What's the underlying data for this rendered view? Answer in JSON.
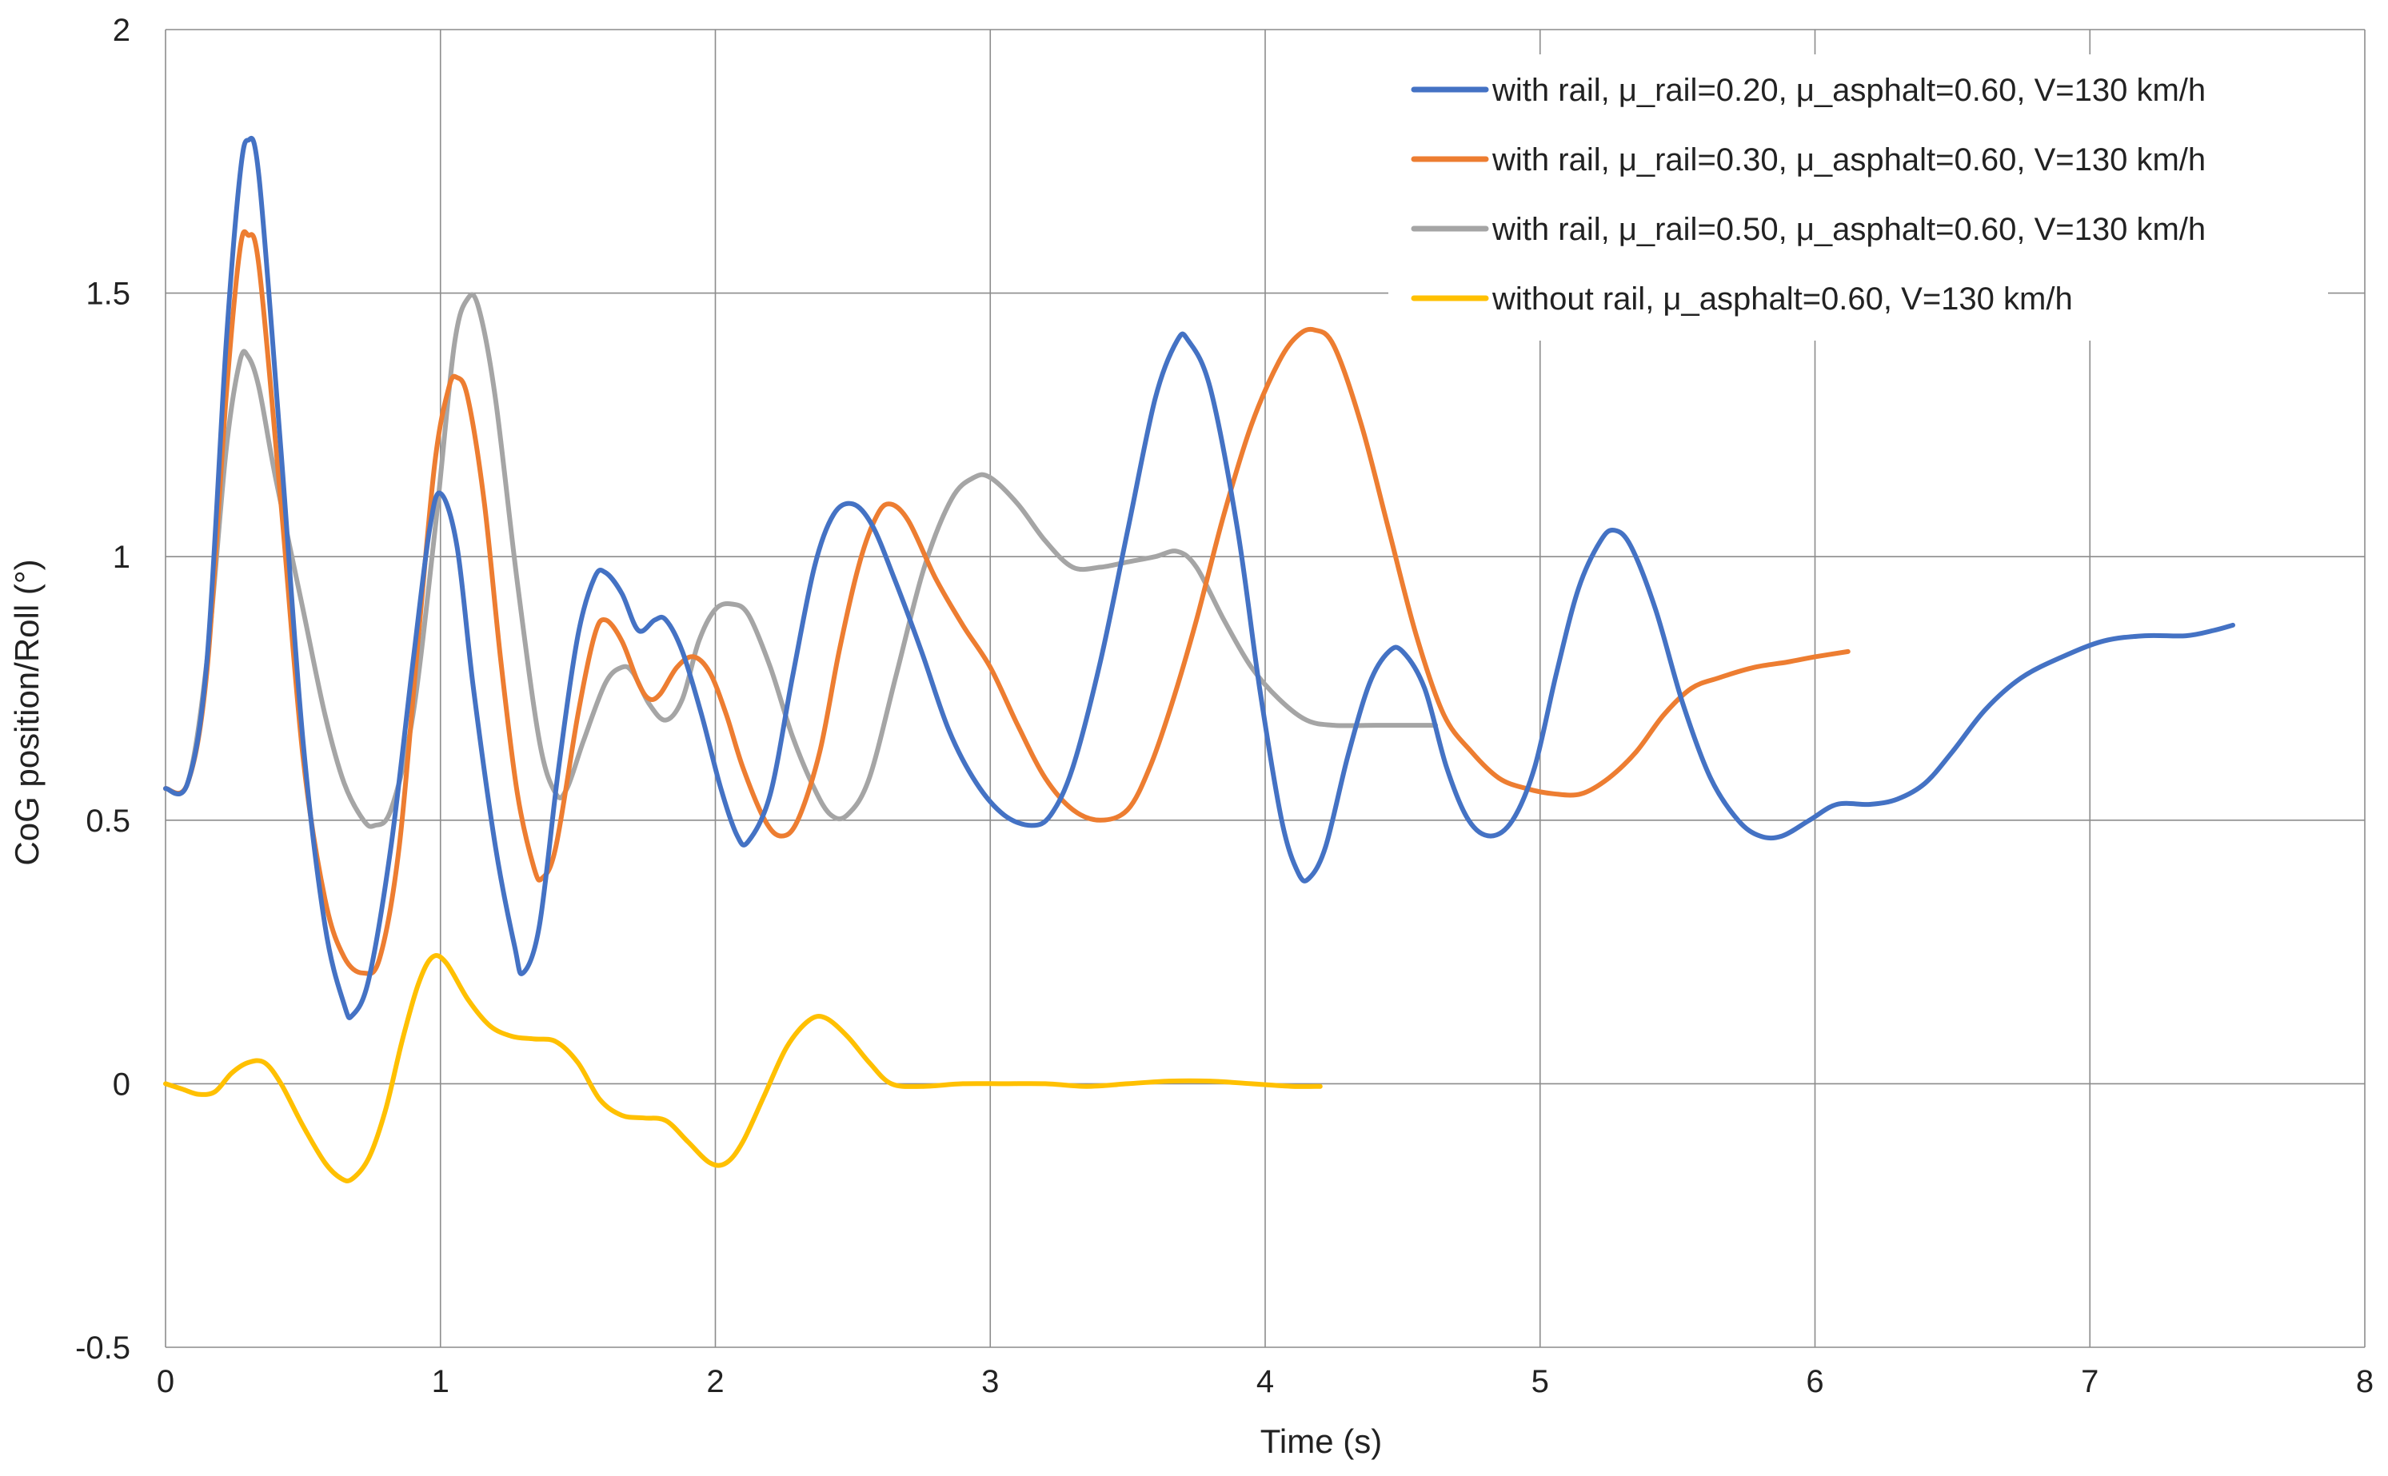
{
  "chart_data": {
    "type": "line",
    "title": "",
    "xlabel": "Time  (s)",
    "ylabel": "CoG position/Roll (°)",
    "xlim": [
      0,
      8
    ],
    "ylim": [
      -0.5,
      2
    ],
    "xticks": [
      0,
      1,
      2,
      3,
      4,
      5,
      6,
      7,
      8
    ],
    "yticks": [
      -0.5,
      0,
      0.5,
      1,
      1.5,
      2
    ],
    "xtick_labels": [
      "0",
      "1",
      "2",
      "3",
      "4",
      "5",
      "6",
      "7",
      "8"
    ],
    "ytick_labels": [
      "-0.5",
      "0",
      "0.5",
      "1",
      "1.5",
      "2"
    ],
    "grid": true,
    "legend_position": "top-right",
    "series": [
      {
        "name": "with rail, μ_rail=0.20, μ_asphalt=0.60, V=130 km/h",
        "color": "#4472C4",
        "points": [
          [
            0,
            0.56
          ],
          [
            0.08,
            0.57
          ],
          [
            0.15,
            0.8
          ],
          [
            0.22,
            1.4
          ],
          [
            0.27,
            1.72
          ],
          [
            0.3,
            1.79
          ],
          [
            0.34,
            1.72
          ],
          [
            0.42,
            1.2
          ],
          [
            0.5,
            0.65
          ],
          [
            0.58,
            0.3
          ],
          [
            0.65,
            0.15
          ],
          [
            0.68,
            0.13
          ],
          [
            0.74,
            0.2
          ],
          [
            0.82,
            0.45
          ],
          [
            0.9,
            0.8
          ],
          [
            0.96,
            1.05
          ],
          [
            1.0,
            1.12
          ],
          [
            1.06,
            1.02
          ],
          [
            1.12,
            0.75
          ],
          [
            1.2,
            0.45
          ],
          [
            1.27,
            0.26
          ],
          [
            1.3,
            0.21
          ],
          [
            1.36,
            0.3
          ],
          [
            1.43,
            0.6
          ],
          [
            1.5,
            0.85
          ],
          [
            1.56,
            0.96
          ],
          [
            1.6,
            0.97
          ],
          [
            1.66,
            0.93
          ],
          [
            1.72,
            0.86
          ],
          [
            1.78,
            0.88
          ],
          [
            1.82,
            0.88
          ],
          [
            1.88,
            0.82
          ],
          [
            1.95,
            0.7
          ],
          [
            2.02,
            0.56
          ],
          [
            2.08,
            0.47
          ],
          [
            2.12,
            0.46
          ],
          [
            2.2,
            0.55
          ],
          [
            2.28,
            0.77
          ],
          [
            2.36,
            0.98
          ],
          [
            2.43,
            1.08
          ],
          [
            2.5,
            1.1
          ],
          [
            2.57,
            1.06
          ],
          [
            2.65,
            0.96
          ],
          [
            2.75,
            0.82
          ],
          [
            2.85,
            0.67
          ],
          [
            2.95,
            0.57
          ],
          [
            3.05,
            0.51
          ],
          [
            3.15,
            0.49
          ],
          [
            3.22,
            0.51
          ],
          [
            3.3,
            0.6
          ],
          [
            3.4,
            0.8
          ],
          [
            3.5,
            1.05
          ],
          [
            3.6,
            1.3
          ],
          [
            3.68,
            1.41
          ],
          [
            3.72,
            1.41
          ],
          [
            3.8,
            1.32
          ],
          [
            3.9,
            1.05
          ],
          [
            3.98,
            0.75
          ],
          [
            4.06,
            0.5
          ],
          [
            4.12,
            0.4
          ],
          [
            4.16,
            0.39
          ],
          [
            4.22,
            0.45
          ],
          [
            4.3,
            0.62
          ],
          [
            4.38,
            0.76
          ],
          [
            4.45,
            0.82
          ],
          [
            4.5,
            0.82
          ],
          [
            4.58,
            0.75
          ],
          [
            4.66,
            0.6
          ],
          [
            4.74,
            0.5
          ],
          [
            4.82,
            0.47
          ],
          [
            4.9,
            0.5
          ],
          [
            4.98,
            0.6
          ],
          [
            5.06,
            0.78
          ],
          [
            5.14,
            0.94
          ],
          [
            5.22,
            1.03
          ],
          [
            5.27,
            1.05
          ],
          [
            5.33,
            1.02
          ],
          [
            5.42,
            0.9
          ],
          [
            5.52,
            0.72
          ],
          [
            5.62,
            0.58
          ],
          [
            5.72,
            0.5
          ],
          [
            5.8,
            0.47
          ],
          [
            5.88,
            0.47
          ],
          [
            5.98,
            0.5
          ],
          [
            6.08,
            0.53
          ],
          [
            6.2,
            0.53
          ],
          [
            6.3,
            0.54
          ],
          [
            6.4,
            0.57
          ],
          [
            6.5,
            0.63
          ],
          [
            6.62,
            0.71
          ],
          [
            6.75,
            0.77
          ],
          [
            6.9,
            0.81
          ],
          [
            7.05,
            0.84
          ],
          [
            7.2,
            0.85
          ],
          [
            7.35,
            0.85
          ],
          [
            7.45,
            0.86
          ],
          [
            7.52,
            0.87
          ]
        ]
      },
      {
        "name": "with rail, μ_rail=0.30, μ_asphalt=0.60, V=130 km/h",
        "color": "#ED7D31",
        "points": [
          [
            0,
            0.56
          ],
          [
            0.08,
            0.57
          ],
          [
            0.15,
            0.78
          ],
          [
            0.22,
            1.3
          ],
          [
            0.27,
            1.58
          ],
          [
            0.3,
            1.61
          ],
          [
            0.34,
            1.55
          ],
          [
            0.42,
            1.1
          ],
          [
            0.5,
            0.62
          ],
          [
            0.58,
            0.35
          ],
          [
            0.65,
            0.24
          ],
          [
            0.72,
            0.21
          ],
          [
            0.78,
            0.24
          ],
          [
            0.85,
            0.45
          ],
          [
            0.92,
            0.85
          ],
          [
            0.98,
            1.18
          ],
          [
            1.03,
            1.32
          ],
          [
            1.06,
            1.34
          ],
          [
            1.1,
            1.3
          ],
          [
            1.16,
            1.1
          ],
          [
            1.22,
            0.8
          ],
          [
            1.28,
            0.55
          ],
          [
            1.34,
            0.41
          ],
          [
            1.37,
            0.39
          ],
          [
            1.42,
            0.45
          ],
          [
            1.5,
            0.7
          ],
          [
            1.56,
            0.85
          ],
          [
            1.6,
            0.88
          ],
          [
            1.66,
            0.84
          ],
          [
            1.72,
            0.76
          ],
          [
            1.76,
            0.73
          ],
          [
            1.8,
            0.74
          ],
          [
            1.86,
            0.79
          ],
          [
            1.92,
            0.81
          ],
          [
            1.98,
            0.78
          ],
          [
            2.04,
            0.7
          ],
          [
            2.1,
            0.6
          ],
          [
            2.18,
            0.5
          ],
          [
            2.24,
            0.47
          ],
          [
            2.3,
            0.5
          ],
          [
            2.38,
            0.63
          ],
          [
            2.45,
            0.82
          ],
          [
            2.52,
            0.98
          ],
          [
            2.58,
            1.07
          ],
          [
            2.63,
            1.1
          ],
          [
            2.7,
            1.07
          ],
          [
            2.8,
            0.96
          ],
          [
            2.9,
            0.87
          ],
          [
            3.0,
            0.79
          ],
          [
            3.1,
            0.68
          ],
          [
            3.2,
            0.58
          ],
          [
            3.3,
            0.52
          ],
          [
            3.4,
            0.5
          ],
          [
            3.5,
            0.52
          ],
          [
            3.58,
            0.6
          ],
          [
            3.66,
            0.72
          ],
          [
            3.75,
            0.88
          ],
          [
            3.85,
            1.08
          ],
          [
            3.95,
            1.25
          ],
          [
            4.05,
            1.37
          ],
          [
            4.12,
            1.42
          ],
          [
            4.18,
            1.43
          ],
          [
            4.25,
            1.4
          ],
          [
            4.35,
            1.25
          ],
          [
            4.45,
            1.05
          ],
          [
            4.55,
            0.85
          ],
          [
            4.65,
            0.7
          ],
          [
            4.75,
            0.63
          ],
          [
            4.85,
            0.58
          ],
          [
            4.95,
            0.56
          ],
          [
            5.05,
            0.55
          ],
          [
            5.15,
            0.55
          ],
          [
            5.25,
            0.58
          ],
          [
            5.35,
            0.63
          ],
          [
            5.45,
            0.7
          ],
          [
            5.55,
            0.75
          ],
          [
            5.65,
            0.77
          ],
          [
            5.78,
            0.79
          ],
          [
            5.9,
            0.8
          ],
          [
            6.0,
            0.81
          ],
          [
            6.12,
            0.82
          ]
        ]
      },
      {
        "name": "with rail, μ_rail=0.50, μ_asphalt=0.60, V=130 km/h",
        "color": "#A5A5A5",
        "points": [
          [
            0,
            0.56
          ],
          [
            0.08,
            0.57
          ],
          [
            0.15,
            0.8
          ],
          [
            0.22,
            1.2
          ],
          [
            0.27,
            1.37
          ],
          [
            0.3,
            1.38
          ],
          [
            0.34,
            1.32
          ],
          [
            0.4,
            1.15
          ],
          [
            0.5,
            0.9
          ],
          [
            0.58,
            0.7
          ],
          [
            0.65,
            0.57
          ],
          [
            0.72,
            0.5
          ],
          [
            0.76,
            0.49
          ],
          [
            0.82,
            0.52
          ],
          [
            0.9,
            0.7
          ],
          [
            0.98,
            1.05
          ],
          [
            1.05,
            1.4
          ],
          [
            1.1,
            1.49
          ],
          [
            1.14,
            1.47
          ],
          [
            1.2,
            1.3
          ],
          [
            1.28,
            0.95
          ],
          [
            1.36,
            0.65
          ],
          [
            1.42,
            0.55
          ],
          [
            1.46,
            0.56
          ],
          [
            1.52,
            0.65
          ],
          [
            1.6,
            0.76
          ],
          [
            1.66,
            0.79
          ],
          [
            1.7,
            0.78
          ],
          [
            1.76,
            0.72
          ],
          [
            1.82,
            0.69
          ],
          [
            1.88,
            0.73
          ],
          [
            1.94,
            0.84
          ],
          [
            2.0,
            0.9
          ],
          [
            2.06,
            0.91
          ],
          [
            2.12,
            0.89
          ],
          [
            2.2,
            0.79
          ],
          [
            2.28,
            0.66
          ],
          [
            2.36,
            0.56
          ],
          [
            2.42,
            0.51
          ],
          [
            2.48,
            0.51
          ],
          [
            2.56,
            0.58
          ],
          [
            2.66,
            0.78
          ],
          [
            2.76,
            0.98
          ],
          [
            2.86,
            1.11
          ],
          [
            2.94,
            1.15
          ],
          [
            3.0,
            1.15
          ],
          [
            3.1,
            1.1
          ],
          [
            3.2,
            1.03
          ],
          [
            3.3,
            0.98
          ],
          [
            3.4,
            0.98
          ],
          [
            3.5,
            0.99
          ],
          [
            3.6,
            1.0
          ],
          [
            3.68,
            1.01
          ],
          [
            3.75,
            0.98
          ],
          [
            3.85,
            0.88
          ],
          [
            3.95,
            0.79
          ],
          [
            4.05,
            0.73
          ],
          [
            4.15,
            0.69
          ],
          [
            4.25,
            0.68
          ],
          [
            4.4,
            0.68
          ],
          [
            4.55,
            0.68
          ],
          [
            4.62,
            0.68
          ]
        ]
      },
      {
        "name": "without rail, μ_asphalt=0.60, V=130 km/h",
        "color": "#FFC000",
        "points": [
          [
            0,
            0.0
          ],
          [
            0.06,
            -0.01
          ],
          [
            0.12,
            -0.02
          ],
          [
            0.18,
            -0.015
          ],
          [
            0.24,
            0.02
          ],
          [
            0.3,
            0.04
          ],
          [
            0.36,
            0.04
          ],
          [
            0.42,
            0.0
          ],
          [
            0.5,
            -0.08
          ],
          [
            0.58,
            -0.15
          ],
          [
            0.64,
            -0.18
          ],
          [
            0.68,
            -0.18
          ],
          [
            0.74,
            -0.14
          ],
          [
            0.8,
            -0.05
          ],
          [
            0.86,
            0.08
          ],
          [
            0.92,
            0.19
          ],
          [
            0.97,
            0.24
          ],
          [
            1.02,
            0.23
          ],
          [
            1.1,
            0.16
          ],
          [
            1.18,
            0.11
          ],
          [
            1.26,
            0.09
          ],
          [
            1.34,
            0.085
          ],
          [
            1.42,
            0.08
          ],
          [
            1.5,
            0.04
          ],
          [
            1.58,
            -0.03
          ],
          [
            1.66,
            -0.06
          ],
          [
            1.74,
            -0.065
          ],
          [
            1.82,
            -0.07
          ],
          [
            1.9,
            -0.11
          ],
          [
            1.98,
            -0.15
          ],
          [
            2.04,
            -0.15
          ],
          [
            2.1,
            -0.11
          ],
          [
            2.18,
            -0.02
          ],
          [
            2.26,
            0.07
          ],
          [
            2.34,
            0.12
          ],
          [
            2.4,
            0.125
          ],
          [
            2.48,
            0.09
          ],
          [
            2.56,
            0.04
          ],
          [
            2.64,
            0.0
          ],
          [
            2.75,
            -0.005
          ],
          [
            2.9,
            0.0
          ],
          [
            3.05,
            0.0
          ],
          [
            3.2,
            0.0
          ],
          [
            3.35,
            -0.005
          ],
          [
            3.5,
            0.0
          ],
          [
            3.65,
            0.005
          ],
          [
            3.8,
            0.005
          ],
          [
            3.95,
            0.0
          ],
          [
            4.1,
            -0.005
          ],
          [
            4.2,
            -0.005
          ]
        ]
      }
    ]
  }
}
